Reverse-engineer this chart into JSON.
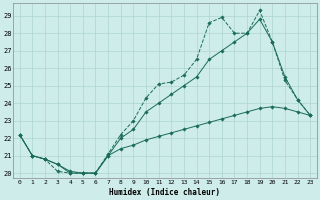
{
  "xlabel": "Humidex (Indice chaleur)",
  "background_color": "#cdecea",
  "grid_color": "#aed4d0",
  "line_color": "#1a6b5a",
  "xlim": [
    -0.5,
    23.5
  ],
  "ylim": [
    19.7,
    29.7
  ],
  "yticks": [
    20,
    21,
    22,
    23,
    24,
    25,
    26,
    27,
    28,
    29
  ],
  "xticks": [
    0,
    1,
    2,
    3,
    4,
    5,
    6,
    7,
    8,
    9,
    10,
    11,
    12,
    13,
    14,
    15,
    16,
    17,
    18,
    19,
    20,
    21,
    22,
    23
  ],
  "line1_x": [
    0,
    1,
    2,
    3,
    4,
    5,
    6,
    7,
    8,
    9,
    10,
    11,
    12,
    13,
    14,
    15,
    16,
    17,
    18,
    19,
    20,
    21,
    22,
    23
  ],
  "line1_y": [
    22.2,
    21.0,
    20.8,
    20.1,
    20.0,
    20.0,
    20.0,
    21.1,
    22.2,
    23.0,
    24.3,
    25.1,
    25.2,
    25.6,
    26.5,
    28.6,
    28.9,
    28.0,
    28.0,
    29.3,
    27.5,
    25.3,
    24.2,
    23.3
  ],
  "line2_x": [
    0,
    1,
    2,
    3,
    4,
    5,
    6,
    7,
    8,
    9,
    10,
    11,
    12,
    13,
    14,
    15,
    16,
    17,
    18,
    19,
    20,
    21,
    22,
    23
  ],
  "line2_y": [
    22.2,
    21.0,
    20.8,
    20.5,
    20.0,
    20.0,
    20.0,
    21.0,
    22.0,
    22.5,
    23.5,
    24.0,
    24.5,
    25.0,
    25.5,
    26.5,
    27.0,
    27.5,
    28.0,
    28.8,
    27.5,
    25.5,
    24.2,
    23.3
  ],
  "line3_x": [
    0,
    1,
    2,
    3,
    4,
    5,
    6,
    7,
    8,
    9,
    10,
    11,
    12,
    13,
    14,
    15,
    16,
    17,
    18,
    19,
    20,
    21,
    22,
    23
  ],
  "line3_y": [
    22.2,
    21.0,
    20.8,
    20.5,
    20.1,
    20.0,
    20.0,
    21.0,
    21.4,
    21.6,
    21.9,
    22.1,
    22.3,
    22.5,
    22.7,
    22.9,
    23.1,
    23.3,
    23.5,
    23.7,
    23.8,
    23.7,
    23.5,
    23.3
  ]
}
